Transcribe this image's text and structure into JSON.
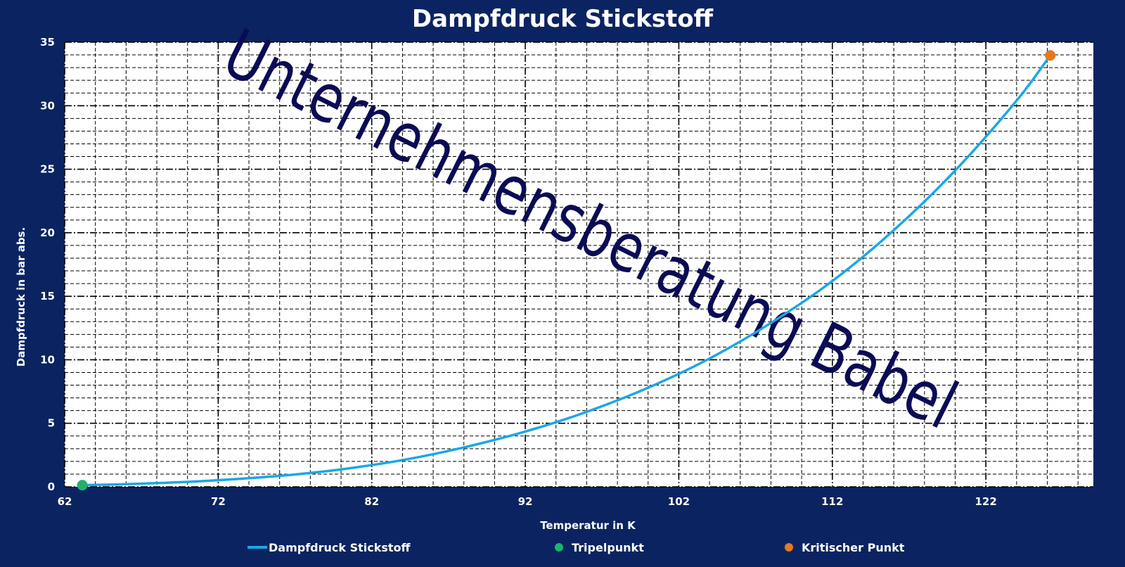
{
  "chart_data": {
    "type": "line",
    "title": "Dampfdruck Stickstoff",
    "xlabel": "Temperatur in K",
    "ylabel": "Dampfdruck in bar abs.",
    "xlim": [
      62,
      129
    ],
    "ylim": [
      0,
      35
    ],
    "x_ticks": [
      62,
      72,
      82,
      92,
      102,
      112,
      122
    ],
    "y_ticks": [
      0,
      5,
      10,
      15,
      20,
      25,
      30,
      35
    ],
    "grid": true,
    "legend_position": "bottom",
    "series": [
      {
        "name": "Dampfdruck Stickstoff",
        "kind": "line",
        "color": "#1aa7e6",
        "x": [
          63.15,
          66,
          70,
          74,
          77,
          80,
          84,
          88,
          92,
          96,
          100,
          104,
          108,
          112,
          116,
          120,
          124,
          126.19
        ],
        "y": [
          0.13,
          0.21,
          0.39,
          0.68,
          0.97,
          1.37,
          2.1,
          3.1,
          4.35,
          5.9,
          7.8,
          10.1,
          12.9,
          16.2,
          20.2,
          24.9,
          30.4,
          33.96
        ]
      },
      {
        "name": "Tripelpunkt",
        "kind": "marker",
        "color": "#1db36e",
        "x": [
          63.15
        ],
        "y": [
          0.13
        ]
      },
      {
        "name": "Kritischer Punkt",
        "kind": "marker",
        "color": "#e37a1f",
        "x": [
          126.19
        ],
        "y": [
          33.96
        ]
      }
    ],
    "watermark": "Unternehmensberatung Babel"
  }
}
